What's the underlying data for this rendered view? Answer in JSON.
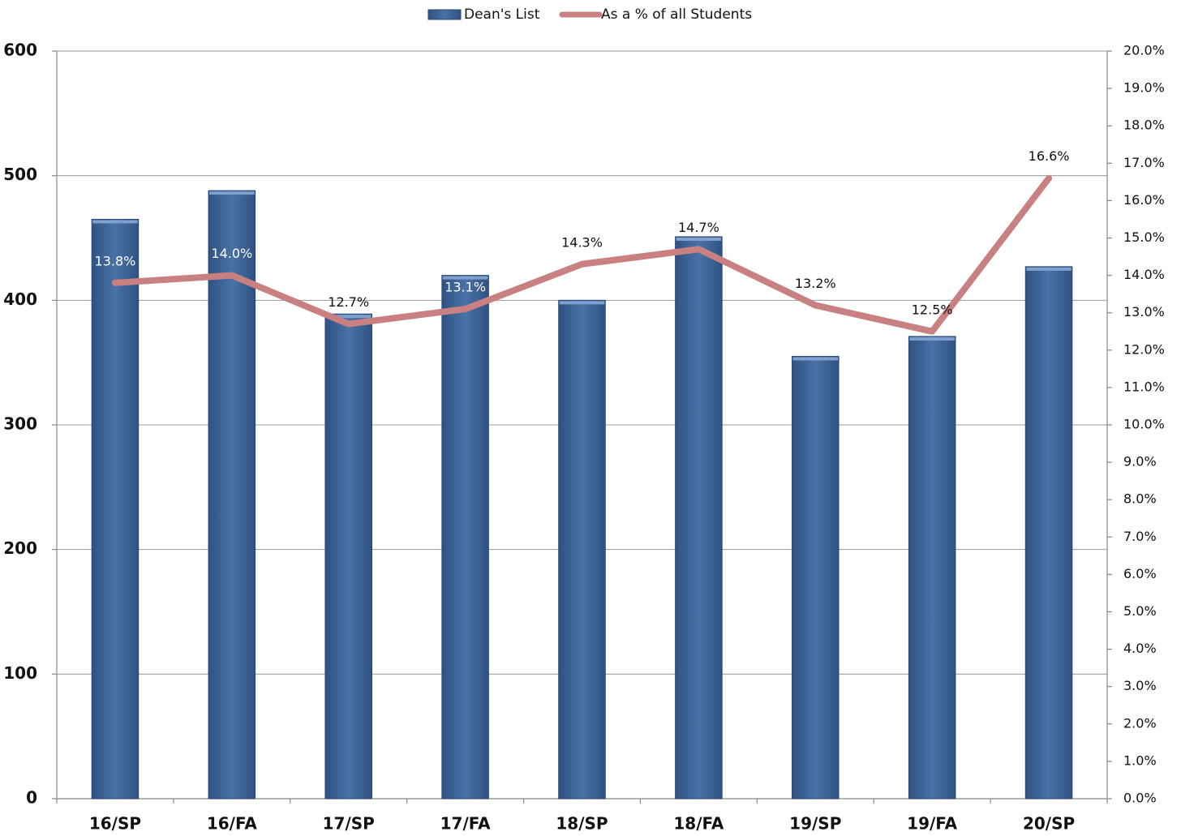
{
  "chart_data": {
    "type": "bar",
    "categories": [
      "16/SP",
      "16/FA",
      "17/SP",
      "17/FA",
      "18/SP",
      "18/FA",
      "19/SP",
      "19/FA",
      "20/SP"
    ],
    "series": [
      {
        "name": "Dean's List",
        "color": "#3d6497",
        "values": [
          465,
          488,
          389,
          420,
          400,
          451,
          355,
          371,
          427
        ]
      },
      {
        "name": "As a % of all Students",
        "color": "#c98080",
        "type": "line",
        "axis": "y2",
        "values": [
          13.8,
          14.0,
          12.7,
          13.1,
          14.3,
          14.7,
          13.2,
          12.5,
          16.6
        ],
        "value_labels": [
          "13.8%",
          "14.0%",
          "12.7%",
          "13.1%",
          "14.3%",
          "14.7%",
          "13.2%",
          "12.5%",
          "16.6%"
        ]
      }
    ],
    "ylim": [
      0,
      600
    ],
    "yticks": [
      0,
      100,
      200,
      300,
      400,
      500,
      600
    ],
    "y2lim": [
      0,
      20
    ],
    "y2ticks": [
      {
        "value": 0,
        "label": "0.0%"
      },
      {
        "value": 1,
        "label": "1.0%"
      },
      {
        "value": 2,
        "label": "2.0%"
      },
      {
        "value": 3,
        "label": "3.0%"
      },
      {
        "value": 4,
        "label": "4.0%"
      },
      {
        "value": 5,
        "label": "5.0%"
      },
      {
        "value": 6,
        "label": "6.0%"
      },
      {
        "value": 7,
        "label": "7.0%"
      },
      {
        "value": 8,
        "label": "8.0%"
      },
      {
        "value": 9,
        "label": "9.0%"
      },
      {
        "value": 10,
        "label": "10.0%"
      },
      {
        "value": 11,
        "label": "11.0%"
      },
      {
        "value": 12,
        "label": "12.0%"
      },
      {
        "value": 13,
        "label": "13.0%"
      },
      {
        "value": 14,
        "label": "14.0%"
      },
      {
        "value": 15,
        "label": "15.0%"
      },
      {
        "value": 16,
        "label": "16.0%"
      },
      {
        "value": 17,
        "label": "17.0%"
      },
      {
        "value": 18,
        "label": "18.0%"
      },
      {
        "value": 19,
        "label": "19.0%"
      },
      {
        "value": 20,
        "label": "20.0%"
      }
    ],
    "grid": true,
    "legend": "top"
  }
}
